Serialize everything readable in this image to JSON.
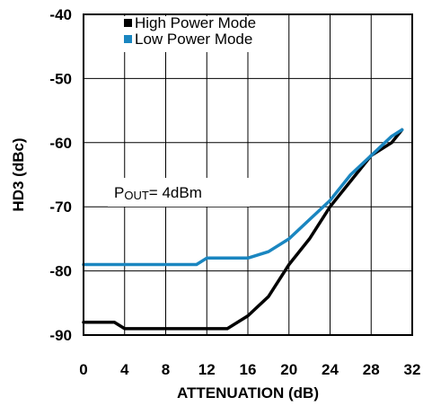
{
  "chart_data": {
    "type": "line",
    "xlabel": "ATTENUATION (dB)",
    "ylabel": "HD3 (dBc)",
    "xlim": [
      0,
      32
    ],
    "ylim": [
      -90,
      -40
    ],
    "xticks": [
      0,
      4,
      8,
      12,
      16,
      20,
      24,
      28,
      32
    ],
    "yticks": [
      -40,
      -50,
      -60,
      -70,
      -80,
      -90
    ],
    "xtick_labels": [
      "0",
      "4",
      "8",
      "12",
      "16",
      "20",
      "24",
      "28",
      "32"
    ],
    "ytick_labels": [
      "-40",
      "-50",
      "-60",
      "-70",
      "-80",
      "-90"
    ],
    "grid": true,
    "legend_placement": "top-left",
    "series": [
      {
        "name": "High Power Mode",
        "color": "#000000",
        "x": [
          0,
          3,
          4,
          6,
          8,
          10,
          12,
          14,
          16,
          18,
          20,
          22,
          24,
          26,
          28,
          30,
          31
        ],
        "y": [
          -88,
          -88,
          -89,
          -89,
          -89,
          -89,
          -89,
          -89,
          -87,
          -84,
          -79,
          -75,
          -70,
          -66,
          -62,
          -60,
          -58
        ]
      },
      {
        "name": "Low Power Mode",
        "color": "#1a86c0",
        "x": [
          0,
          2,
          4,
          6,
          8,
          10,
          11,
          12,
          14,
          16,
          18,
          20,
          22,
          24,
          26,
          28,
          30,
          31
        ],
        "y": [
          -79,
          -79,
          -79,
          -79,
          -79,
          -79,
          -79,
          -78,
          -78,
          -78,
          -77,
          -75,
          -72,
          -69,
          -65,
          -62,
          -59,
          -58
        ]
      }
    ],
    "annotation": {
      "prefix": "P",
      "subscript": "OUT",
      "suffix": "= 4dBm"
    }
  }
}
